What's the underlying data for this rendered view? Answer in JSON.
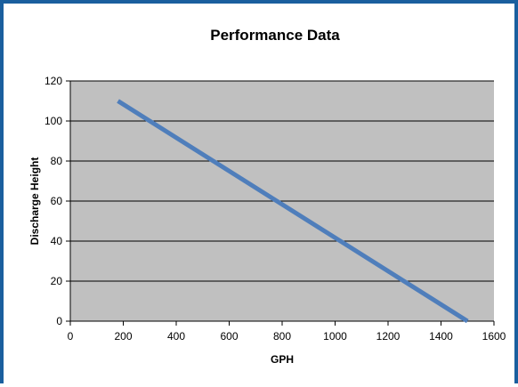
{
  "colors": {
    "frame_border": "#1a5f9e",
    "plot_background": "#c0c0c0",
    "series_line": "#4f7ebb",
    "gridline": "#000000"
  },
  "chart_data": {
    "type": "line",
    "title": "Performance Data",
    "xlabel": "GPH",
    "ylabel": "Discharge Height",
    "xlim": [
      0,
      1600
    ],
    "ylim": [
      0,
      120
    ],
    "x_ticks": [
      "0",
      "200",
      "400",
      "600",
      "800",
      "1000",
      "1200",
      "1400",
      "1600"
    ],
    "y_ticks": [
      "0",
      "20",
      "40",
      "60",
      "80",
      "100",
      "120"
    ],
    "grid": "horizontal",
    "legend": "none",
    "series": [
      {
        "x": [
          180,
          1500
        ],
        "y": [
          110,
          0
        ]
      }
    ]
  }
}
